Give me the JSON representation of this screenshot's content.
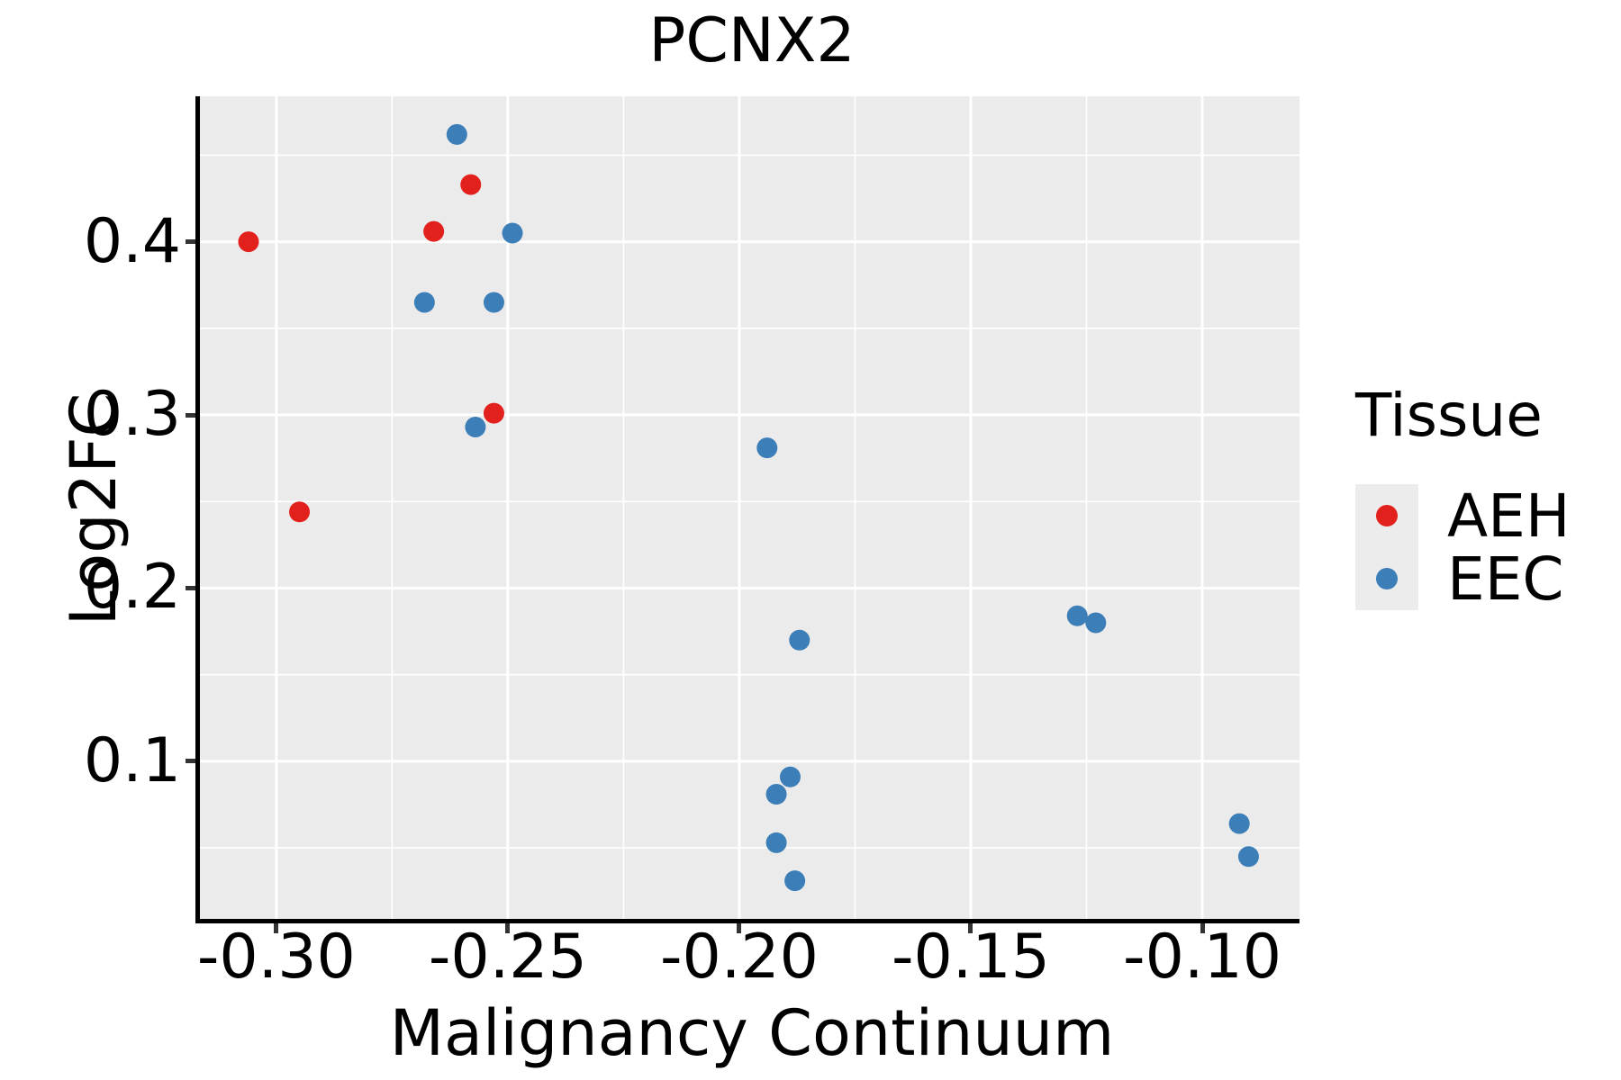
{
  "chart_data": {
    "type": "scatter",
    "title": "PCNX2",
    "xlabel": "Malignancy Continuum",
    "ylabel": "Log2FC",
    "xlim": [
      -0.3165,
      -0.079
    ],
    "ylim": [
      0.009,
      0.484
    ],
    "x_ticks": [
      -0.3,
      -0.25,
      -0.2,
      -0.15,
      -0.1
    ],
    "x_tick_labels": [
      "-0.30",
      "-0.25",
      "-0.20",
      "-0.15",
      "-0.10"
    ],
    "x_minor_gridlines": [
      -0.275,
      -0.225,
      -0.175,
      -0.125
    ],
    "y_ticks": [
      0.1,
      0.2,
      0.3,
      0.4
    ],
    "y_tick_labels": [
      "0.1",
      "0.2",
      "0.3",
      "0.4"
    ],
    "y_minor_gridlines": [
      0.05,
      0.15,
      0.25,
      0.35,
      0.45
    ],
    "grid": "major and minor white gridlines on gray panel",
    "legend": {
      "title": "Tissue",
      "position": "right",
      "entries": [
        {
          "label": "AEH",
          "color": "#E2201C"
        },
        {
          "label": "EEC",
          "color": "#3C7EB8"
        }
      ]
    },
    "series": [
      {
        "name": "AEH",
        "color": "#E2201C",
        "points": [
          [
            -0.306,
            0.4
          ],
          [
            -0.295,
            0.244
          ],
          [
            -0.266,
            0.406
          ],
          [
            -0.258,
            0.433
          ],
          [
            -0.253,
            0.301
          ]
        ]
      },
      {
        "name": "EEC",
        "color": "#3C7EB8",
        "points": [
          [
            -0.268,
            0.365
          ],
          [
            -0.261,
            0.462
          ],
          [
            -0.257,
            0.293
          ],
          [
            -0.253,
            0.365
          ],
          [
            -0.249,
            0.405
          ],
          [
            -0.194,
            0.281
          ],
          [
            -0.192,
            0.081
          ],
          [
            -0.192,
            0.053
          ],
          [
            -0.189,
            0.091
          ],
          [
            -0.188,
            0.031
          ],
          [
            -0.187,
            0.17
          ],
          [
            -0.127,
            0.184
          ],
          [
            -0.123,
            0.18
          ],
          [
            -0.092,
            0.064
          ],
          [
            -0.09,
            0.045
          ]
        ]
      }
    ],
    "point_radius_px": 11.5
  },
  "styles": {
    "panel_bg": "#EBEBEB",
    "grid_color": "#FFFFFF",
    "spine_color": "#000000",
    "tick_color": "#333333",
    "text_color": "#000000",
    "legend_key_bg": "#ECECEC"
  }
}
